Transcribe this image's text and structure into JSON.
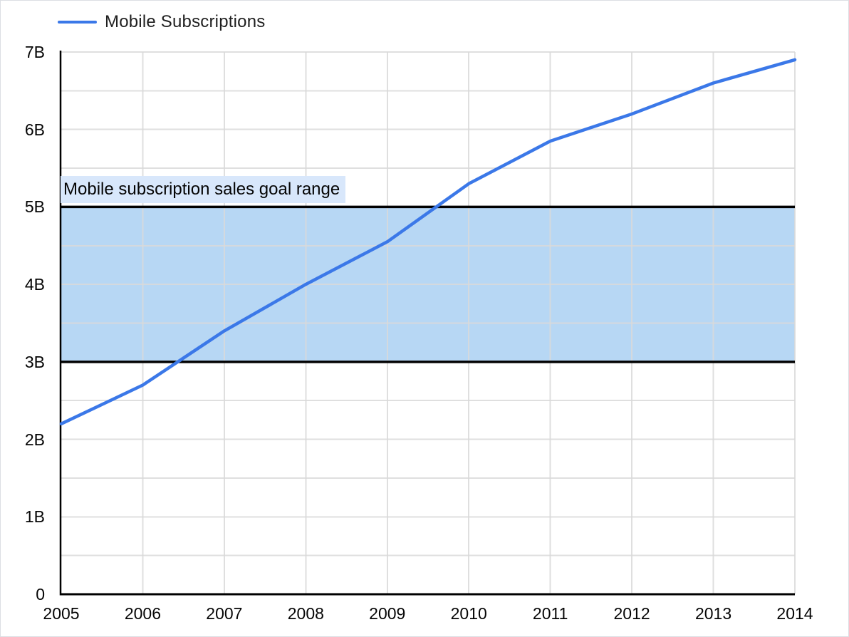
{
  "legend": {
    "series_label": "Mobile Subscriptions"
  },
  "colors": {
    "series_line": "#3b78e8",
    "band_fill": "#b7d7f4",
    "band_border": "#000000",
    "annotation_bg": "#d8e7fb",
    "gridline": "#d9d9d9",
    "axis": "#000000",
    "tick_text": "#050505"
  },
  "chart_data": {
    "type": "line",
    "title": "",
    "xlabel": "",
    "ylabel": "",
    "x": [
      2005,
      2006,
      2007,
      2008,
      2009,
      2010,
      2011,
      2012,
      2013,
      2014
    ],
    "x_tick_labels": [
      "2005",
      "2006",
      "2007",
      "2008",
      "2009",
      "2010",
      "2011",
      "2012",
      "2013",
      "2014"
    ],
    "series": [
      {
        "name": "Mobile Subscriptions",
        "values_billions": [
          2.2,
          2.7,
          3.4,
          4.0,
          4.55,
          5.3,
          5.85,
          6.2,
          6.6,
          6.9
        ]
      }
    ],
    "ylim_billions": [
      0,
      7
    ],
    "y_tick_step_billions": 1,
    "y_gridline_step_billions": 0.5,
    "y_tick_labels": [
      "0",
      "1B",
      "2B",
      "3B",
      "4B",
      "5B",
      "6B",
      "7B"
    ],
    "grid": true,
    "legend_position": "top-left",
    "reference_band": {
      "label": "Mobile subscription sales goal range",
      "from_billions": 3,
      "to_billions": 5
    }
  }
}
